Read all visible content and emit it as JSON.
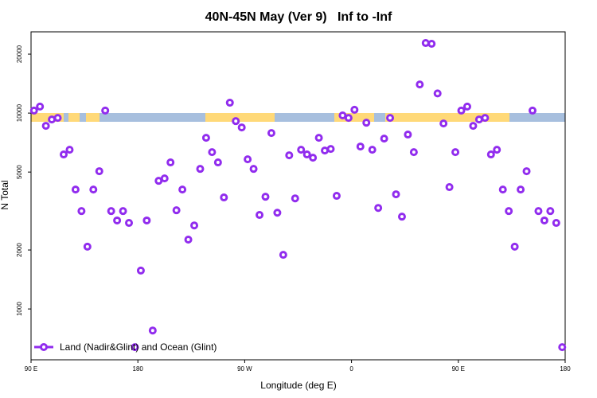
{
  "chart_data": {
    "type": "scatter",
    "title": "40N-45N May (Ver 9)   Inf to -Inf",
    "x_label": "Longitude (deg E)",
    "y_label": "N Total",
    "log_y": true,
    "xlim": [
      90,
      540
    ],
    "xticks": [
      {
        "value": 90,
        "label": "90 E"
      },
      {
        "value": 180,
        "label": "180"
      },
      {
        "value": 270,
        "label": "90 W"
      },
      {
        "value": 360,
        "label": "0"
      },
      {
        "value": 450,
        "label": "90 E"
      },
      {
        "value": 540,
        "label": "180"
      }
    ],
    "ylim": [
      550,
      26000
    ],
    "yticks": [
      1000,
      2000,
      5000,
      10000,
      20000
    ],
    "legend": "bottom-left",
    "series": [
      {
        "name": "Land (Nadir&Glint) and Ocean (Glint)",
        "color": "#912cee",
        "x": [
          92.5,
          97.5,
          102.5,
          107.5,
          112.5,
          117.5,
          122.5,
          127.5,
          132.5,
          137.5,
          142.5,
          147.5,
          152.5,
          157.5,
          162.5,
          167.5,
          172.5,
          177.5,
          182.5,
          187.5,
          192.5,
          197.5,
          202.5,
          207.5,
          212.5,
          217.5,
          222.5,
          227.5,
          232.5,
          237.5,
          242.5,
          247.5,
          252.5,
          257.5,
          262.5,
          267.5,
          272.5,
          277.5,
          282.5,
          287.5,
          292.5,
          297.5,
          302.5,
          307.5,
          312.5,
          317.5,
          322.5,
          327.5,
          332.5,
          337.5,
          342.5,
          347.5,
          352.5,
          357.5,
          362.5,
          367.5,
          372.5,
          377.5,
          382.5,
          387.5,
          392.5,
          397.5,
          402.5,
          407.5,
          412.5,
          417.5,
          422.5,
          427.5,
          432.5,
          437.5,
          442.5,
          447.5,
          452.5,
          457.5,
          462.5,
          467.5,
          472.5,
          477.5,
          482.5,
          487.5,
          492.5,
          497.5,
          502.5,
          507.5,
          512.5,
          517.5,
          522.5,
          527.5,
          532.5,
          537.5
        ],
        "values": [
          10300,
          10800,
          8610,
          9280,
          9450,
          6150,
          6500,
          4070,
          3160,
          2080,
          4070,
          5050,
          10300,
          3160,
          2830,
          3160,
          2750,
          638,
          1570,
          2830,
          776,
          4510,
          4640,
          5600,
          3190,
          4070,
          2260,
          2670,
          5190,
          7480,
          6320,
          5600,
          3710,
          11300,
          9100,
          8450,
          5810,
          5190,
          3020,
          3740,
          7910,
          3100,
          1890,
          6090,
          3670,
          6500,
          6150,
          5920,
          7480,
          6440,
          6560,
          3780,
          9730,
          9450,
          10400,
          6750,
          8930,
          6500,
          3280,
          7410,
          9450,
          3850,
          2960,
          7770,
          6320,
          14000,
          22800,
          22600,
          12600,
          8850,
          4190,
          6320,
          10300,
          10800,
          8610,
          9280,
          9450,
          6150,
          6500,
          4070,
          3160,
          2080,
          4070,
          5050,
          10300,
          3160,
          2830,
          3160,
          2750,
          638
        ]
      }
    ]
  }
}
